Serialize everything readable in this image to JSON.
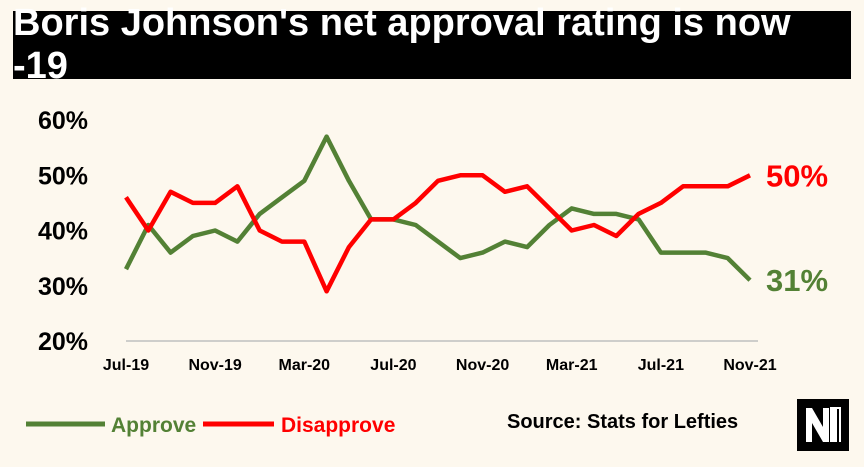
{
  "title": "Boris Johnson's net approval rating is now -19",
  "source": "Source: Stats for Lefties",
  "logo": "nm-logo-icon",
  "chart_data": {
    "type": "line",
    "title": "Boris Johnson's net approval rating is now -19",
    "xlabel": "",
    "ylabel": "",
    "x": [
      "2019-07",
      "2019-08",
      "2019-09",
      "2019-10",
      "2019-11",
      "2019-12",
      "2020-01",
      "2020-02",
      "2020-03",
      "2020-04",
      "2020-05",
      "2020-06",
      "2020-07",
      "2020-08",
      "2020-09",
      "2020-10",
      "2020-11",
      "2020-12",
      "2021-01",
      "2021-02",
      "2021-03",
      "2021-04",
      "2021-05",
      "2021-06",
      "2021-07",
      "2021-08",
      "2021-09",
      "2021-10",
      "2021-11"
    ],
    "xticks": [
      "Jul-19",
      "Nov-19",
      "Mar-20",
      "Jul-20",
      "Nov-20",
      "Mar-21",
      "Jul-21",
      "Nov-21"
    ],
    "yticks": [
      "20%",
      "30%",
      "40%",
      "50%",
      "60%"
    ],
    "ylim": [
      20,
      60
    ],
    "grid": false,
    "legend": "bottom-left",
    "series": [
      {
        "name": "Approve",
        "color": "#538135",
        "values": [
          33,
          41,
          36,
          39,
          40,
          38,
          43,
          46,
          49,
          57,
          49,
          42,
          42,
          41,
          38,
          35,
          36,
          38,
          37,
          41,
          44,
          43,
          43,
          42,
          36,
          36,
          36,
          35,
          31
        ],
        "end_label": "31%"
      },
      {
        "name": "Disapprove",
        "color": "#ff0000",
        "values": [
          46,
          40,
          47,
          45,
          45,
          48,
          40,
          38,
          38,
          29,
          37,
          42,
          42,
          45,
          49,
          50,
          50,
          47,
          48,
          44,
          40,
          41,
          39,
          43,
          45,
          48,
          48,
          48,
          50
        ],
        "end_label": "50%"
      }
    ]
  }
}
